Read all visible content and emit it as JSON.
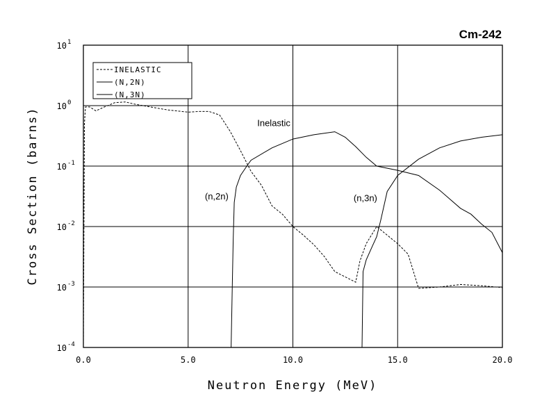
{
  "chart_data": {
    "type": "line",
    "title": "Cm-242",
    "xlabel": "Neutron Energy (MeV)",
    "ylabel": "Cross Section (barns)",
    "xlim": [
      0,
      20
    ],
    "ylim": [
      0.0001,
      10
    ],
    "yscale": "log",
    "grid": true,
    "legend_position": "top-left",
    "x_ticks": [
      "0.0",
      "5.0",
      "10.0",
      "15.0",
      "20.0"
    ],
    "y_ticks": [
      {
        "base": "10",
        "exp": "1"
      },
      {
        "base": "10",
        "exp": "0"
      },
      {
        "base": "10",
        "exp": "-1"
      },
      {
        "base": "10",
        "exp": "-2"
      },
      {
        "base": "10",
        "exp": "-3"
      },
      {
        "base": "10",
        "exp": "-4"
      }
    ],
    "series": [
      {
        "name": "INELASTIC",
        "style": "dashed",
        "x": [
          0.0,
          0.05,
          0.1,
          0.3,
          0.6,
          1.0,
          1.5,
          2.0,
          2.5,
          3.0,
          4.0,
          5.0,
          5.5,
          6.0,
          6.5,
          7.0,
          7.5,
          8.0,
          8.5,
          9.0,
          9.5,
          10.0,
          10.5,
          11.0,
          11.5,
          12.0,
          13.0,
          13.2,
          13.5,
          14.0,
          14.5,
          15.0,
          15.5,
          16.0,
          17.0,
          18.0,
          19.0,
          20.0
        ],
        "y": [
          0.0001,
          0.5,
          0.95,
          0.95,
          0.82,
          0.95,
          1.12,
          1.15,
          1.05,
          0.98,
          0.85,
          0.78,
          0.8,
          0.8,
          0.7,
          0.38,
          0.18,
          0.082,
          0.048,
          0.022,
          0.016,
          0.01,
          0.0072,
          0.005,
          0.0032,
          0.0018,
          0.0012,
          0.0027,
          0.0052,
          0.01,
          0.0072,
          0.0052,
          0.0035,
          0.00095,
          0.001,
          0.0011,
          0.00105,
          0.00098
        ]
      },
      {
        "name": "(N,2N)",
        "style": "solid",
        "x": [
          7.05,
          7.1,
          7.15,
          7.2,
          7.3,
          7.5,
          7.8,
          8.0,
          9.0,
          10.0,
          11.0,
          12.0,
          12.5,
          13.0,
          13.5,
          14.0,
          15.0,
          16.0,
          17.0,
          18.0,
          18.5,
          19.0,
          19.5,
          20.0
        ],
        "y": [
          0.0001,
          0.0008,
          0.006,
          0.025,
          0.045,
          0.07,
          0.1,
          0.125,
          0.2,
          0.28,
          0.33,
          0.37,
          0.3,
          0.21,
          0.14,
          0.1,
          0.085,
          0.07,
          0.04,
          0.02,
          0.016,
          0.011,
          0.008,
          0.0037
        ]
      },
      {
        "name": "(N,3N)",
        "style": "solid",
        "x": [
          13.3,
          13.35,
          13.5,
          13.8,
          14.0,
          14.2,
          14.5,
          15.0,
          16.0,
          17.0,
          18.0,
          19.0,
          20.0
        ],
        "y": [
          0.0001,
          0.0018,
          0.0028,
          0.0048,
          0.0068,
          0.013,
          0.038,
          0.07,
          0.13,
          0.2,
          0.26,
          0.3,
          0.33
        ]
      }
    ],
    "annotations": [
      {
        "text": "Inelastic",
        "x": 8.3,
        "y": 0.52
      },
      {
        "text": "(n,2n)",
        "x": 5.8,
        "y": 0.032
      },
      {
        "text": "(n,3n)",
        "x": 12.9,
        "y": 0.03
      }
    ]
  }
}
